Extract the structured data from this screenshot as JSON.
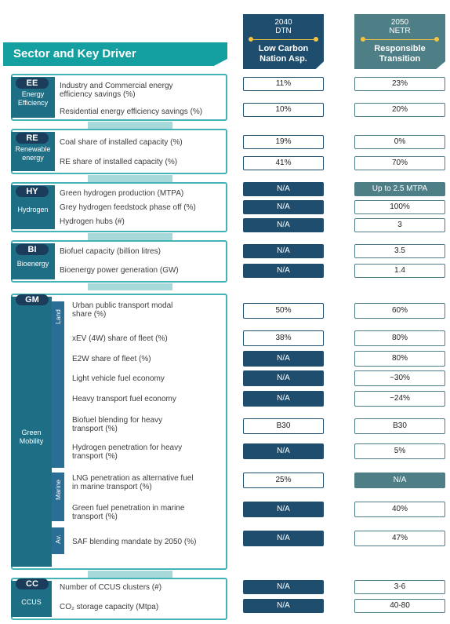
{
  "headers": {
    "col1": {
      "year": "2040",
      "scenario": "DTN",
      "name_line1": "Low Carbon",
      "name_line2": "Nation Asp."
    },
    "col2": {
      "year": "2050",
      "scenario": "NETR",
      "name_line1": "Responsible",
      "name_line2": "Transition"
    }
  },
  "title": "Sector and Key Driver",
  "sectors": {
    "ee": {
      "code": "EE",
      "name_line1": "Energy",
      "name_line2": "Efficiency",
      "rows": [
        {
          "l1": "Industry and Commercial energy",
          "l2": "efficiency savings (%)",
          "v1": "11%",
          "v2": "23%"
        },
        {
          "l1": "Residential energy efficiency savings (%)",
          "v1": "10%",
          "v2": "20%"
        }
      ]
    },
    "re": {
      "code": "RE",
      "name_line1": "Renewable",
      "name_line2": "energy",
      "rows": [
        {
          "l1": "Coal share of installed capacity (%)",
          "v1": "19%",
          "v2": "0%"
        },
        {
          "l1": "RE share of installed capacity (%)",
          "v1": "41%",
          "v2": "70%"
        }
      ]
    },
    "hy": {
      "code": "HY",
      "name_line1": "Hydrogen",
      "rows": [
        {
          "l1": "Green hydrogen production (MTPA)",
          "v1": "N/A",
          "v2": "Up to 2.5 MTPA"
        },
        {
          "l1": "Grey hydrogen feedstock phase off (%)",
          "v1": "N/A",
          "v2": "100%"
        },
        {
          "l1": "Hydrogen hubs (#)",
          "v1": "N/A",
          "v2": "3"
        }
      ]
    },
    "bi": {
      "code": "BI",
      "name_line1": "Bioenergy",
      "rows": [
        {
          "l1": "Biofuel capacity (billion litres)",
          "v1": "N/A",
          "v2": "3.5"
        },
        {
          "l1": "Bioenergy power generation (GW)",
          "v1": "N/A",
          "v2": "1.4"
        }
      ]
    },
    "gm": {
      "code": "GM",
      "name_line1": "Green",
      "name_line2": "Mobility",
      "sub_land": "Land",
      "sub_marine": "Marine",
      "sub_av": "Av.",
      "rows": [
        {
          "l1": "Urban public transport modal",
          "l2": "share (%)",
          "v1": "50%",
          "v2": "60%"
        },
        {
          "l1": "xEV (4W) share of fleet (%)",
          "v1": "38%",
          "v2": "80%"
        },
        {
          "l1": "E2W share of fleet (%)",
          "v1": "N/A",
          "v2": "80%"
        },
        {
          "l1": "Light vehicle fuel economy",
          "v1": "N/A",
          "v2": "~30%"
        },
        {
          "l1": "Heavy transport fuel economy",
          "v1": "N/A",
          "v2": "~24%"
        },
        {
          "l1": "Biofuel blending for heavy",
          "l2": "transport (%)",
          "v1": "B30",
          "v2": "B30"
        },
        {
          "l1": "Hydrogen penetration for heavy",
          "l2": "transport (%)",
          "v1": "N/A",
          "v2": "5%"
        },
        {
          "l1": "LNG penetration as alternative fuel",
          "l2": "in marine transport (%)",
          "v1": "25%",
          "v2": "N/A"
        },
        {
          "l1": "Green fuel penetration in marine",
          "l2": "transport (%)",
          "v1": "N/A",
          "v2": "40%"
        },
        {
          "l1": "SAF blending mandate by 2050 (%)",
          "v1": "N/A",
          "v2": "47%"
        }
      ]
    },
    "cc": {
      "code": "CC",
      "name_line1": "CCUS",
      "rows": [
        {
          "l1": "Number of CCUS clusters (#)",
          "v1": "N/A",
          "v2": "3-6"
        },
        {
          "l1": "CO₂ storage capacity (Mtpa)",
          "v1": "N/A",
          "v2": "40-80"
        }
      ]
    }
  }
}
